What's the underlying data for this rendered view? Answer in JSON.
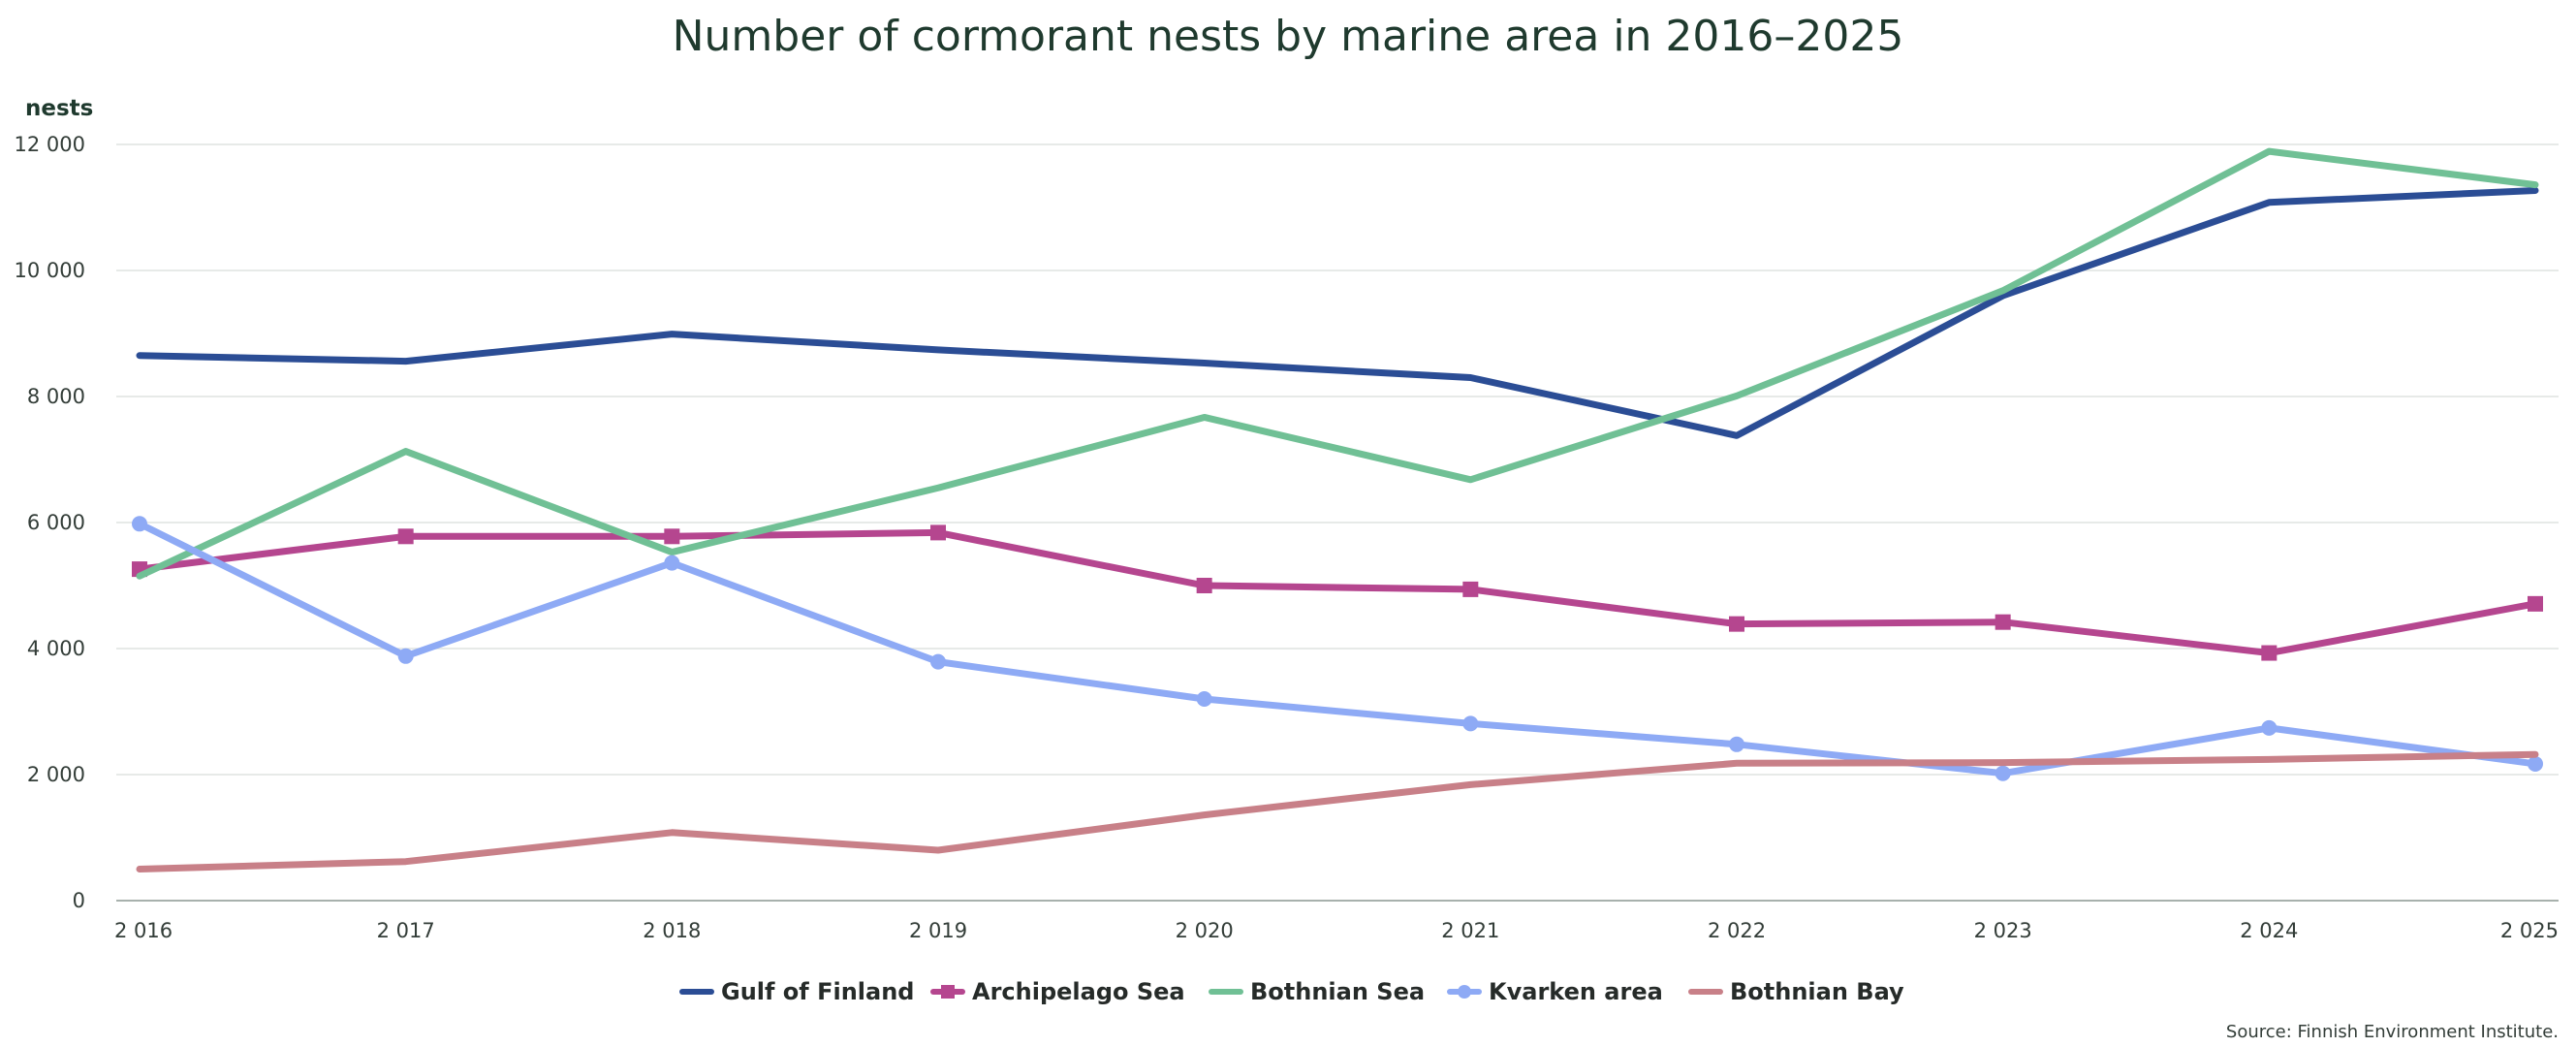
{
  "chart_data": {
    "type": "line",
    "title": "Number of cormorant nests by marine area in 2016–2025",
    "ylabel": "nests",
    "xlabel": "",
    "ylim": [
      0,
      12000
    ],
    "yticks": [
      0,
      2000,
      4000,
      6000,
      8000,
      10000,
      12000
    ],
    "ytick_labels": [
      "0",
      "2 000",
      "4 000",
      "6 000",
      "8 000",
      "10 000",
      "12 000"
    ],
    "x": [
      2016,
      2017,
      2018,
      2019,
      2020,
      2021,
      2022,
      2023,
      2024,
      2025
    ],
    "x_labels": [
      "2 016",
      "2 017",
      "2 018",
      "2 019",
      "2 020",
      "2 021",
      "2 022",
      "2 023",
      "2 024",
      "2 025"
    ],
    "grid": "horizontal",
    "legend_position": "bottom",
    "series": [
      {
        "name": "Gulf of Finland",
        "color": "#2b4d95",
        "marker": "none",
        "values": [
          8650,
          8560,
          8990,
          8740,
          8530,
          8300,
          7380,
          9600,
          11080,
          11270
        ]
      },
      {
        "name": "Archipelago Sea",
        "color": "#b5468f",
        "marker": "square",
        "values": [
          5260,
          5780,
          5780,
          5840,
          5000,
          4940,
          4390,
          4420,
          3930,
          4710
        ]
      },
      {
        "name": "Bothnian Sea",
        "color": "#70c095",
        "marker": "none",
        "values": [
          5150,
          7130,
          5530,
          6550,
          7670,
          6680,
          8010,
          9680,
          11890,
          11360
        ]
      },
      {
        "name": "Kvarken area",
        "color": "#8eaaf5",
        "marker": "circle",
        "values": [
          5980,
          3880,
          5360,
          3790,
          3200,
          2810,
          2480,
          2020,
          2740,
          2170
        ]
      },
      {
        "name": "Bothnian Bay",
        "color": "#c88088",
        "marker": "none",
        "values": [
          500,
          620,
          1080,
          800,
          1360,
          1840,
          2180,
          2190,
          2240,
          2320
        ]
      }
    ],
    "source": "Source: Finnish Environment Institute."
  }
}
